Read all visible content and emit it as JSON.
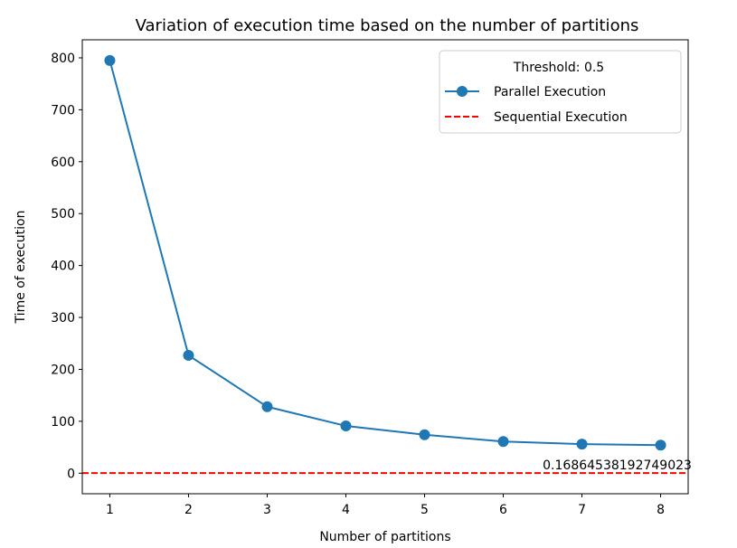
{
  "chart_data": {
    "type": "line",
    "title": "Variation of execution time based on the number of partitions",
    "xlabel": "Number of partitions",
    "ylabel": "Time of execution",
    "x": [
      1,
      2,
      3,
      4,
      5,
      6,
      7,
      8
    ],
    "series": [
      {
        "name": "Parallel Execution",
        "values": [
          795,
          227,
          128,
          91,
          74,
          61,
          56,
          54
        ],
        "color": "#1f77b4",
        "marker": "circle",
        "line_style": "solid"
      }
    ],
    "reference_line": {
      "name": "Sequential Execution",
      "y": 0.16864538192749023,
      "color": "#ff0000",
      "line_style": "dashed",
      "label": "0.16864538192749023"
    },
    "legend": {
      "title": "Threshold: 0.5",
      "location": "upper right"
    },
    "x_ticks": [
      "1",
      "2",
      "3",
      "4",
      "5",
      "6",
      "7",
      "8"
    ],
    "y_ticks": [
      "0",
      "100",
      "200",
      "300",
      "400",
      "500",
      "600",
      "700",
      "800"
    ],
    "xlim": [
      0.65,
      8.35
    ],
    "ylim": [
      -39.6,
      834.8
    ],
    "grid": false
  }
}
